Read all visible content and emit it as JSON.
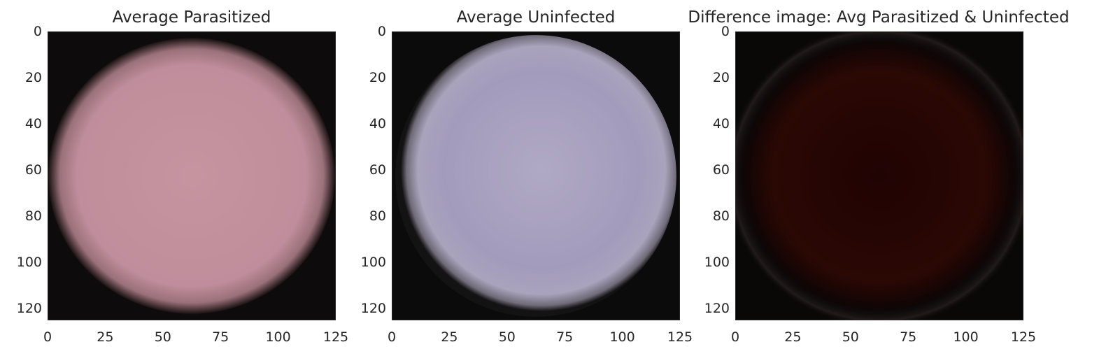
{
  "chart_data": [
    {
      "type": "heatmap",
      "title": "Average Parasitized",
      "image_content": "average RGB cell image, pink disc on black background",
      "color": "#c08f9e",
      "xlim": [
        0,
        125
      ],
      "ylim": [
        125,
        0
      ],
      "xticks": [
        "0",
        "25",
        "50",
        "75",
        "100",
        "125"
      ],
      "yticks": [
        "0",
        "20",
        "40",
        "60",
        "80",
        "100",
        "120"
      ]
    },
    {
      "type": "heatmap",
      "title": "Average Uninfected",
      "image_content": "average RGB cell image, lavender disc on black background",
      "color": "#a59bbd",
      "xlim": [
        0,
        125
      ],
      "ylim": [
        125,
        0
      ],
      "xticks": [
        "0",
        "25",
        "50",
        "75",
        "100",
        "125"
      ],
      "yticks": [
        "0",
        "20",
        "40",
        "60",
        "80",
        "100",
        "120"
      ]
    },
    {
      "type": "heatmap",
      "title": "Difference image: Avg Parasitized & Uninfected",
      "image_content": "difference image, very dark red disc on black background",
      "color": "#2a0703",
      "xlim": [
        0,
        125
      ],
      "ylim": [
        125,
        0
      ],
      "xticks": [
        "0",
        "25",
        "50",
        "75",
        "100",
        "125"
      ],
      "yticks": [
        "0",
        "20",
        "40",
        "60",
        "80",
        "100",
        "120"
      ]
    }
  ]
}
